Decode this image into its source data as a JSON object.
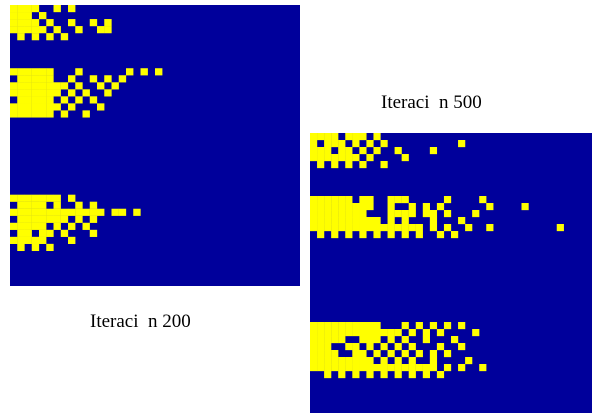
{
  "colors": {
    "background_cell": "#00009b",
    "active_cell": "#ffff00",
    "page_background": "#ffffff"
  },
  "panels": [
    {
      "caption": "Iteraci  n 200",
      "grid_rows": 40,
      "grid_cols": 40,
      "active_cells": [
        [
          0,
          0
        ],
        [
          0,
          1
        ],
        [
          0,
          2
        ],
        [
          0,
          3
        ],
        [
          0,
          6
        ],
        [
          0,
          8
        ],
        [
          1,
          0
        ],
        [
          1,
          1
        ],
        [
          1,
          2
        ],
        [
          1,
          4
        ],
        [
          2,
          0
        ],
        [
          2,
          1
        ],
        [
          2,
          2
        ],
        [
          2,
          3
        ],
        [
          2,
          5
        ],
        [
          2,
          8
        ],
        [
          2,
          11
        ],
        [
          2,
          13
        ],
        [
          3,
          0
        ],
        [
          3,
          1
        ],
        [
          3,
          2
        ],
        [
          3,
          3
        ],
        [
          3,
          4
        ],
        [
          3,
          6
        ],
        [
          3,
          9
        ],
        [
          3,
          12
        ],
        [
          3,
          13
        ],
        [
          4,
          1
        ],
        [
          4,
          3
        ],
        [
          4,
          5
        ],
        [
          4,
          7
        ],
        [
          9,
          0
        ],
        [
          9,
          1
        ],
        [
          9,
          2
        ],
        [
          9,
          3
        ],
        [
          9,
          4
        ],
        [
          9,
          5
        ],
        [
          9,
          9
        ],
        [
          9,
          16
        ],
        [
          9,
          18
        ],
        [
          9,
          20
        ],
        [
          10,
          1
        ],
        [
          10,
          2
        ],
        [
          10,
          3
        ],
        [
          10,
          4
        ],
        [
          10,
          5
        ],
        [
          10,
          8
        ],
        [
          10,
          11
        ],
        [
          10,
          13
        ],
        [
          10,
          15
        ],
        [
          11,
          0
        ],
        [
          11,
          1
        ],
        [
          11,
          2
        ],
        [
          11,
          3
        ],
        [
          11,
          4
        ],
        [
          11,
          5
        ],
        [
          11,
          6
        ],
        [
          11,
          7
        ],
        [
          11,
          9
        ],
        [
          11,
          12
        ],
        [
          11,
          14
        ],
        [
          12,
          0
        ],
        [
          12,
          1
        ],
        [
          12,
          2
        ],
        [
          12,
          3
        ],
        [
          12,
          4
        ],
        [
          12,
          5
        ],
        [
          12,
          6
        ],
        [
          12,
          8
        ],
        [
          12,
          10
        ],
        [
          12,
          13
        ],
        [
          13,
          1
        ],
        [
          13,
          2
        ],
        [
          13,
          3
        ],
        [
          13,
          4
        ],
        [
          13,
          5
        ],
        [
          13,
          7
        ],
        [
          13,
          9
        ],
        [
          13,
          11
        ],
        [
          14,
          0
        ],
        [
          14,
          1
        ],
        [
          14,
          2
        ],
        [
          14,
          3
        ],
        [
          14,
          4
        ],
        [
          14,
          5
        ],
        [
          14,
          6
        ],
        [
          14,
          8
        ],
        [
          14,
          12
        ],
        [
          15,
          0
        ],
        [
          15,
          1
        ],
        [
          15,
          2
        ],
        [
          15,
          3
        ],
        [
          15,
          4
        ],
        [
          15,
          5
        ],
        [
          15,
          7
        ],
        [
          15,
          10
        ],
        [
          27,
          0
        ],
        [
          27,
          1
        ],
        [
          27,
          2
        ],
        [
          27,
          3
        ],
        [
          27,
          4
        ],
        [
          27,
          5
        ],
        [
          27,
          6
        ],
        [
          27,
          8
        ],
        [
          28,
          1
        ],
        [
          28,
          2
        ],
        [
          28,
          3
        ],
        [
          28,
          4
        ],
        [
          28,
          6
        ],
        [
          28,
          9
        ],
        [
          28,
          11
        ],
        [
          29,
          0
        ],
        [
          29,
          1
        ],
        [
          29,
          2
        ],
        [
          29,
          3
        ],
        [
          29,
          4
        ],
        [
          29,
          5
        ],
        [
          29,
          6
        ],
        [
          29,
          7
        ],
        [
          29,
          8
        ],
        [
          29,
          9
        ],
        [
          29,
          10
        ],
        [
          29,
          11
        ],
        [
          29,
          12
        ],
        [
          29,
          14
        ],
        [
          29,
          15
        ],
        [
          29,
          17
        ],
        [
          30,
          1
        ],
        [
          30,
          2
        ],
        [
          30,
          3
        ],
        [
          30,
          4
        ],
        [
          30,
          5
        ],
        [
          30,
          6
        ],
        [
          30,
          7
        ],
        [
          30,
          9
        ],
        [
          30,
          11
        ],
        [
          31,
          0
        ],
        [
          31,
          1
        ],
        [
          31,
          2
        ],
        [
          31,
          3
        ],
        [
          31,
          4
        ],
        [
          31,
          6
        ],
        [
          31,
          8
        ],
        [
          31,
          10
        ],
        [
          32,
          1
        ],
        [
          32,
          2
        ],
        [
          32,
          4
        ],
        [
          32,
          5
        ],
        [
          32,
          7
        ],
        [
          32,
          11
        ],
        [
          33,
          0
        ],
        [
          33,
          1
        ],
        [
          33,
          2
        ],
        [
          33,
          3
        ],
        [
          33,
          4
        ],
        [
          33,
          8
        ],
        [
          34,
          1
        ],
        [
          34,
          3
        ],
        [
          34,
          5
        ]
      ]
    },
    {
      "caption": "Iteraci  n 500",
      "grid_rows": 40,
      "grid_cols": 40,
      "active_cells": [
        [
          0,
          0
        ],
        [
          0,
          1
        ],
        [
          0,
          2
        ],
        [
          0,
          3
        ],
        [
          0,
          5
        ],
        [
          0,
          6
        ],
        [
          0,
          7
        ],
        [
          0,
          9
        ],
        [
          1,
          0
        ],
        [
          1,
          2
        ],
        [
          1,
          3
        ],
        [
          1,
          4
        ],
        [
          1,
          6
        ],
        [
          1,
          8
        ],
        [
          1,
          10
        ],
        [
          1,
          21
        ],
        [
          2,
          0
        ],
        [
          2,
          1
        ],
        [
          2,
          2
        ],
        [
          2,
          4
        ],
        [
          2,
          5
        ],
        [
          2,
          7
        ],
        [
          2,
          9
        ],
        [
          2,
          12
        ],
        [
          2,
          17
        ],
        [
          3,
          0
        ],
        [
          3,
          1
        ],
        [
          3,
          2
        ],
        [
          3,
          3
        ],
        [
          3,
          4
        ],
        [
          3,
          5
        ],
        [
          3,
          6
        ],
        [
          3,
          8
        ],
        [
          3,
          13
        ],
        [
          4,
          1
        ],
        [
          4,
          3
        ],
        [
          4,
          5
        ],
        [
          4,
          7
        ],
        [
          4,
          10
        ],
        [
          9,
          0
        ],
        [
          9,
          1
        ],
        [
          9,
          2
        ],
        [
          9,
          3
        ],
        [
          9,
          4
        ],
        [
          9,
          5
        ],
        [
          9,
          7
        ],
        [
          9,
          8
        ],
        [
          9,
          11
        ],
        [
          9,
          12
        ],
        [
          9,
          13
        ],
        [
          9,
          19
        ],
        [
          9,
          24
        ],
        [
          10,
          0
        ],
        [
          10,
          1
        ],
        [
          10,
          2
        ],
        [
          10,
          3
        ],
        [
          10,
          4
        ],
        [
          10,
          5
        ],
        [
          10,
          6
        ],
        [
          10,
          7
        ],
        [
          10,
          8
        ],
        [
          10,
          11
        ],
        [
          10,
          14
        ],
        [
          10,
          16
        ],
        [
          10,
          18
        ],
        [
          10,
          25
        ],
        [
          10,
          30
        ],
        [
          11,
          0
        ],
        [
          11,
          1
        ],
        [
          11,
          2
        ],
        [
          11,
          3
        ],
        [
          11,
          4
        ],
        [
          11,
          5
        ],
        [
          11,
          6
        ],
        [
          11,
          7
        ],
        [
          11,
          11
        ],
        [
          11,
          12
        ],
        [
          11,
          13
        ],
        [
          11,
          14
        ],
        [
          11,
          16
        ],
        [
          11,
          17
        ],
        [
          11,
          19
        ],
        [
          11,
          23
        ],
        [
          12,
          0
        ],
        [
          12,
          1
        ],
        [
          12,
          2
        ],
        [
          12,
          3
        ],
        [
          12,
          4
        ],
        [
          12,
          5
        ],
        [
          12,
          6
        ],
        [
          12,
          7
        ],
        [
          12,
          8
        ],
        [
          12,
          9
        ],
        [
          12,
          11
        ],
        [
          12,
          13
        ],
        [
          12,
          17
        ],
        [
          12,
          21
        ],
        [
          13,
          0
        ],
        [
          13,
          1
        ],
        [
          13,
          2
        ],
        [
          13,
          3
        ],
        [
          13,
          4
        ],
        [
          13,
          5
        ],
        [
          13,
          6
        ],
        [
          13,
          7
        ],
        [
          13,
          8
        ],
        [
          13,
          9
        ],
        [
          13,
          10
        ],
        [
          13,
          11
        ],
        [
          13,
          12
        ],
        [
          13,
          13
        ],
        [
          13,
          14
        ],
        [
          13,
          15
        ],
        [
          13,
          17
        ],
        [
          13,
          19
        ],
        [
          13,
          22
        ],
        [
          13,
          25
        ],
        [
          13,
          35
        ],
        [
          14,
          1
        ],
        [
          14,
          3
        ],
        [
          14,
          5
        ],
        [
          14,
          7
        ],
        [
          14,
          9
        ],
        [
          14,
          11
        ],
        [
          14,
          13
        ],
        [
          14,
          15
        ],
        [
          14,
          18
        ],
        [
          14,
          20
        ],
        [
          27,
          0
        ],
        [
          27,
          1
        ],
        [
          27,
          2
        ],
        [
          27,
          3
        ],
        [
          27,
          4
        ],
        [
          27,
          5
        ],
        [
          27,
          6
        ],
        [
          27,
          7
        ],
        [
          27,
          8
        ],
        [
          27,
          9
        ],
        [
          27,
          13
        ],
        [
          27,
          15
        ],
        [
          27,
          17
        ],
        [
          27,
          19
        ],
        [
          27,
          21
        ],
        [
          28,
          0
        ],
        [
          28,
          1
        ],
        [
          28,
          2
        ],
        [
          28,
          3
        ],
        [
          28,
          4
        ],
        [
          28,
          5
        ],
        [
          28,
          6
        ],
        [
          28,
          7
        ],
        [
          28,
          8
        ],
        [
          28,
          9
        ],
        [
          28,
          10
        ],
        [
          28,
          11
        ],
        [
          28,
          12
        ],
        [
          28,
          14
        ],
        [
          28,
          16
        ],
        [
          28,
          18
        ],
        [
          28,
          23
        ],
        [
          29,
          0
        ],
        [
          29,
          1
        ],
        [
          29,
          2
        ],
        [
          29,
          3
        ],
        [
          29,
          4
        ],
        [
          29,
          7
        ],
        [
          29,
          8
        ],
        [
          29,
          9
        ],
        [
          29,
          11
        ],
        [
          29,
          13
        ],
        [
          29,
          16
        ],
        [
          29,
          20
        ],
        [
          30,
          0
        ],
        [
          30,
          1
        ],
        [
          30,
          2
        ],
        [
          30,
          5
        ],
        [
          30,
          6
        ],
        [
          30,
          8
        ],
        [
          30,
          10
        ],
        [
          30,
          12
        ],
        [
          30,
          14
        ],
        [
          30,
          18
        ],
        [
          30,
          21
        ],
        [
          31,
          0
        ],
        [
          31,
          1
        ],
        [
          31,
          2
        ],
        [
          31,
          3
        ],
        [
          31,
          6
        ],
        [
          31,
          7
        ],
        [
          31,
          9
        ],
        [
          31,
          11
        ],
        [
          31,
          13
        ],
        [
          31,
          15
        ],
        [
          31,
          17
        ],
        [
          31,
          19
        ],
        [
          32,
          0
        ],
        [
          32,
          1
        ],
        [
          32,
          2
        ],
        [
          32,
          3
        ],
        [
          32,
          4
        ],
        [
          32,
          5
        ],
        [
          32,
          6
        ],
        [
          32,
          7
        ],
        [
          32,
          8
        ],
        [
          32,
          10
        ],
        [
          32,
          12
        ],
        [
          32,
          14
        ],
        [
          32,
          17
        ],
        [
          32,
          22
        ],
        [
          33,
          0
        ],
        [
          33,
          1
        ],
        [
          33,
          2
        ],
        [
          33,
          3
        ],
        [
          33,
          4
        ],
        [
          33,
          5
        ],
        [
          33,
          6
        ],
        [
          33,
          7
        ],
        [
          33,
          8
        ],
        [
          33,
          9
        ],
        [
          33,
          10
        ],
        [
          33,
          11
        ],
        [
          33,
          12
        ],
        [
          33,
          13
        ],
        [
          33,
          14
        ],
        [
          33,
          15
        ],
        [
          33,
          16
        ],
        [
          33,
          17
        ],
        [
          33,
          19
        ],
        [
          33,
          21
        ],
        [
          33,
          24
        ],
        [
          34,
          2
        ],
        [
          34,
          4
        ],
        [
          34,
          6
        ],
        [
          34,
          8
        ],
        [
          34,
          10
        ],
        [
          34,
          12
        ],
        [
          34,
          14
        ],
        [
          34,
          16
        ],
        [
          34,
          18
        ]
      ]
    }
  ]
}
